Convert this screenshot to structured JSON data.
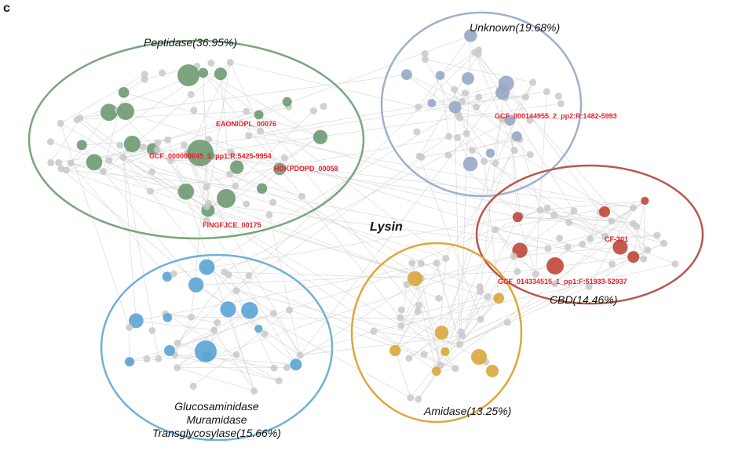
{
  "panel": {
    "letter": "c"
  },
  "center_label": "Lysin",
  "colors": {
    "peptidase": "#7aa57e",
    "peptidase_node": "#6e9a73",
    "unknown": "#9fb0c9",
    "unknown_node": "#97a8c4",
    "cbd": "#b8584a",
    "cbd_node": "#c0473a",
    "amidase": "#d9a93c",
    "amidase_node": "#dca63a",
    "glucosaminidase": "#6fb1d6",
    "glucosaminidase_node": "#5aa4d6",
    "grey_node": "#c9c9c9",
    "edge": "#d5d5d5",
    "highlight_text": "#e8202a"
  },
  "clusters": [
    {
      "key": "peptidase",
      "title": "Peptidase(36.95%)"
    },
    {
      "key": "unknown",
      "title": "Unknown(19.68%)"
    },
    {
      "key": "cbd",
      "title": "CBD(14.46%)"
    },
    {
      "key": "amidase",
      "title": "Amidase(13.25%)"
    },
    {
      "key": "glucosaminidase",
      "title_lines": [
        "Glucosaminidase",
        "Muramidase",
        "Transglycosylase(15.66%)"
      ]
    }
  ],
  "highlights": [
    "EAONIOPL_00076",
    "GCF_000009645_1_pp1:R:5425-9954",
    "HDKPDOPD_00058",
    "FINGFJCE_00175",
    "GCF_000144955_2_pp2:R:1482-5993",
    "CF-301",
    "GCF_014334515_1_pp1:F:51933-52937"
  ]
}
